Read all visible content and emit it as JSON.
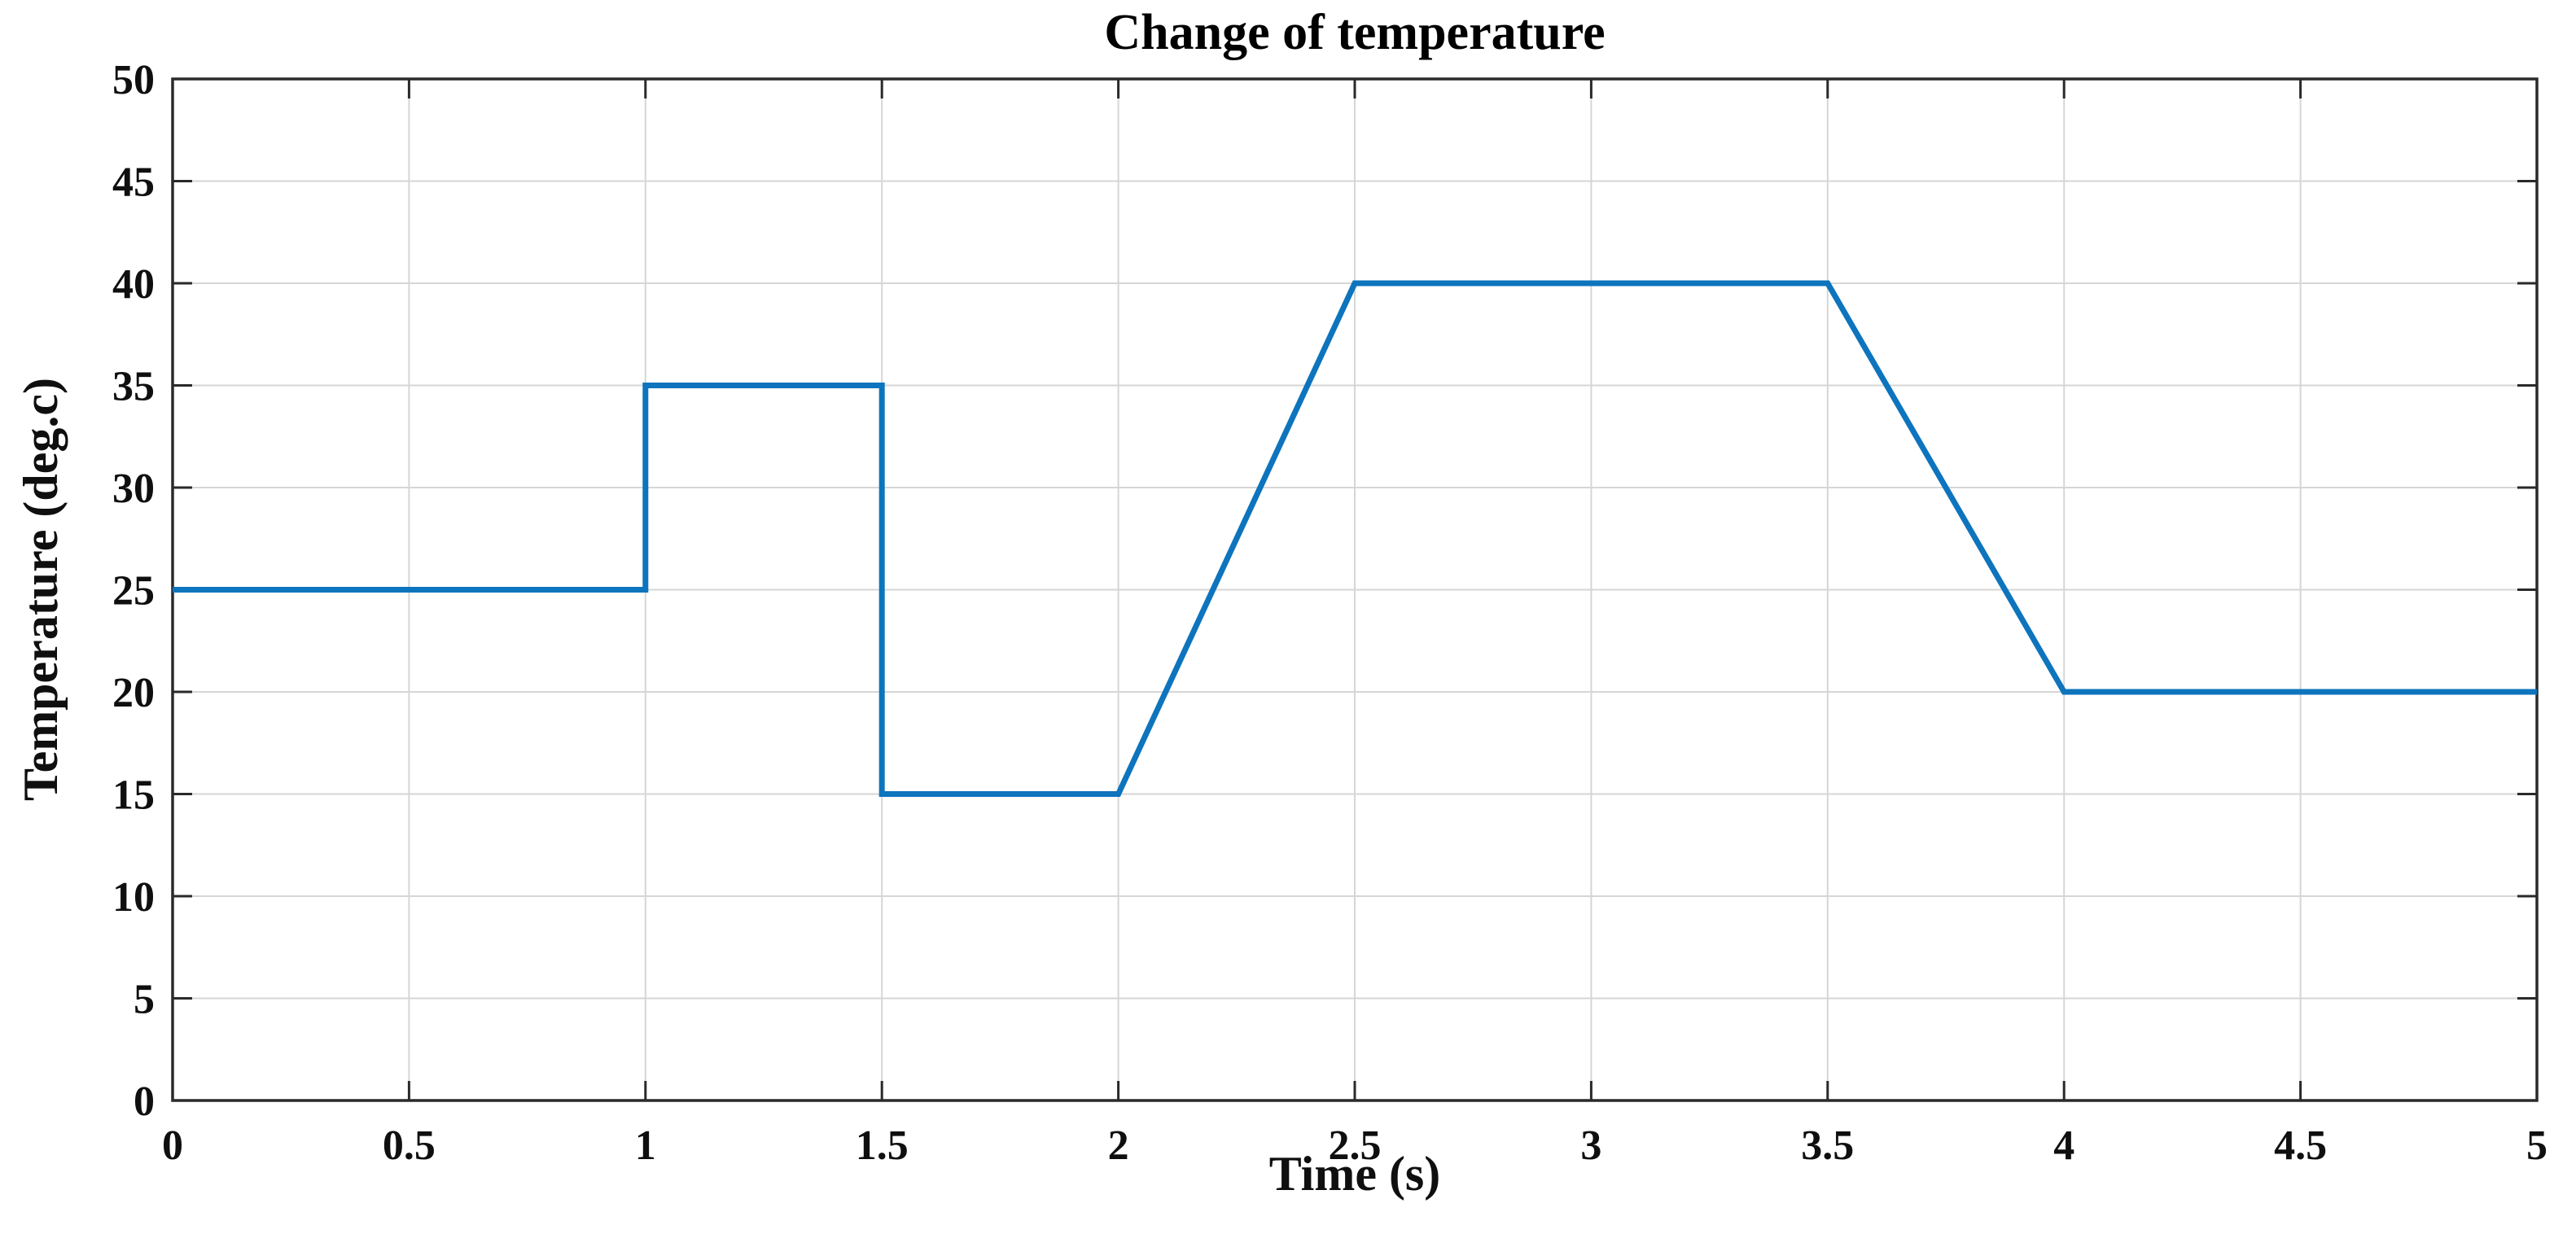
{
  "figure": {
    "background": "#ffffff"
  },
  "chart_data": {
    "type": "line",
    "title": "Change of temperature",
    "xlabel": "Time (s)",
    "ylabel": "Temperature (deg.c)",
    "series": [
      {
        "name": "temperature",
        "x": [
          0,
          1,
          1,
          1.5,
          1.5,
          2,
          2.5,
          3.5,
          4,
          5
        ],
        "y": [
          25,
          25,
          35,
          35,
          15,
          15,
          40,
          40,
          20,
          20
        ],
        "color": "#0d74bd",
        "line_width": 7
      }
    ],
    "xlim": [
      0,
      5
    ],
    "ylim": [
      0,
      50
    ],
    "xticks": [
      0,
      0.5,
      1,
      1.5,
      2,
      2.5,
      3,
      3.5,
      4,
      4.5,
      5
    ],
    "xtick_labels": [
      "0",
      "0.5",
      "1",
      "1.5",
      "2",
      "2.5",
      "3",
      "3.5",
      "4",
      "4.5",
      "5"
    ],
    "yticks": [
      0,
      5,
      10,
      15,
      20,
      25,
      30,
      35,
      40,
      45,
      50
    ],
    "ytick_labels": [
      "0",
      "5",
      "10",
      "15",
      "20",
      "25",
      "30",
      "35",
      "40",
      "45",
      "50"
    ],
    "grid": true,
    "legend_position": "none",
    "colors": {
      "grid": "#d6d6d6",
      "axis": "#2a2a2a",
      "tick": "#2a2a2a",
      "text": "#0f0f0f"
    }
  }
}
